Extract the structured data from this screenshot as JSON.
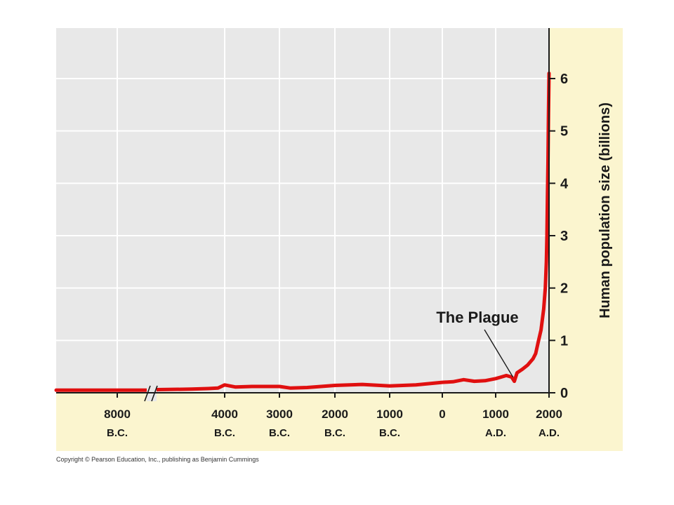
{
  "chart_data": {
    "type": "line",
    "title": "",
    "xlabel": "",
    "ylabel": "Human population size (billions)",
    "ylim": [
      0,
      6.5
    ],
    "yticks": [
      "0",
      "1",
      "2",
      "3",
      "4",
      "5",
      "6"
    ],
    "xticks": [
      {
        "year": -8000,
        "label": "8000",
        "era": "B.C."
      },
      {
        "year": -4000,
        "label": "4000",
        "era": "B.C."
      },
      {
        "year": -3000,
        "label": "3000",
        "era": "B.C."
      },
      {
        "year": -2000,
        "label": "2000",
        "era": "B.C."
      },
      {
        "year": -1000,
        "label": "1000",
        "era": "B.C."
      },
      {
        "year": 0,
        "label": "0",
        "era": ""
      },
      {
        "year": 1000,
        "label": "1000",
        "era": "A.D."
      },
      {
        "year": 2000,
        "label": "2000",
        "era": "A.D."
      }
    ],
    "axis_break": true,
    "grid": true,
    "annotation": {
      "text": "The Plague",
      "year": 1350,
      "value": 0.22
    },
    "series": [
      {
        "name": "",
        "color": "#e01010",
        "x": [
          -9000,
          -8000,
          -7000,
          -6000,
          -5000,
          -4500,
          -4200,
          -4000,
          -3800,
          -3500,
          -3000,
          -2800,
          -2500,
          -2000,
          -1500,
          -1000,
          -500,
          0,
          200,
          400,
          600,
          800,
          1000,
          1100,
          1200,
          1300,
          1350,
          1400,
          1500,
          1600,
          1700,
          1750,
          1800,
          1850,
          1900,
          1930,
          1950,
          1960,
          1970,
          1980,
          1990,
          2000
        ],
        "y": [
          0.05,
          0.05,
          0.05,
          0.06,
          0.07,
          0.08,
          0.09,
          0.15,
          0.11,
          0.12,
          0.12,
          0.09,
          0.1,
          0.14,
          0.16,
          0.13,
          0.15,
          0.2,
          0.21,
          0.25,
          0.22,
          0.23,
          0.27,
          0.3,
          0.33,
          0.3,
          0.22,
          0.38,
          0.45,
          0.53,
          0.65,
          0.75,
          0.98,
          1.2,
          1.6,
          2.0,
          2.5,
          3.0,
          3.7,
          4.4,
          5.3,
          6.1
        ]
      }
    ]
  },
  "copyright": "Copyright © Pearson Education, Inc., publishing as Benjamin Cummings"
}
